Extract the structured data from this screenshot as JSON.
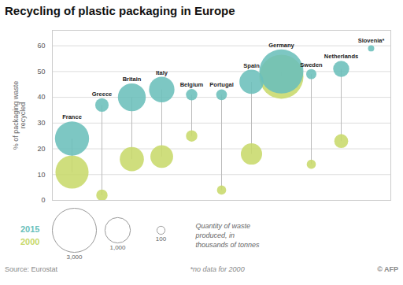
{
  "chart_data": {
    "type": "bubble",
    "title": "Recycling of plastic packaging in Europe",
    "ylabel": "% of packaging waste\nrecycled",
    "categories": [
      "France",
      "Greece",
      "Britain",
      "Italy",
      "Belgium",
      "Portugal",
      "Spain",
      "Germany",
      "Sweden",
      "Netherlands",
      "Slovenia*"
    ],
    "series": [
      {
        "name": "2015",
        "color": "#6bbfbb",
        "values": [
          24,
          37,
          40,
          43,
          41,
          41,
          46,
          50,
          49,
          51,
          59
        ],
        "sizes": [
          1800,
          280,
          1200,
          1000,
          200,
          180,
          900,
          3000,
          160,
          400,
          60
        ]
      },
      {
        "name": "2000",
        "color": "#c8d96b",
        "values": [
          11,
          2,
          16,
          17,
          25,
          4,
          18,
          48,
          14,
          23,
          null
        ],
        "sizes": [
          1700,
          200,
          900,
          800,
          200,
          130,
          700,
          3000,
          130,
          300,
          null
        ]
      }
    ],
    "size_legend": {
      "title": "Quantity of waste\nproduced, in\nthousands of tonnes",
      "values": [
        3000,
        1000,
        100
      ],
      "value_labels": [
        "3,000",
        "1,000",
        "100"
      ]
    },
    "annotations": [
      "Source: Eurostat",
      "*no data for 2000",
      "© AFP"
    ],
    "ylim": [
      0,
      66
    ],
    "yticks": [
      0,
      10,
      20,
      30,
      40,
      50,
      60
    ],
    "grid": true,
    "tick_labels": "y"
  }
}
